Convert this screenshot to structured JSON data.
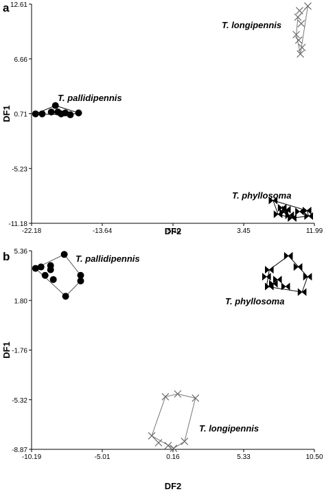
{
  "chart_data": [
    {
      "panel_label": "a",
      "type": "scatter",
      "xlabel": "DF2",
      "ylabel": "DF1",
      "x_ticks": [
        "-22.18",
        "-13.64",
        "-5.10",
        "3.45",
        "11.99"
      ],
      "y_ticks": [
        "12.61",
        "6.66",
        "0.71",
        "-5.23",
        "-11.18"
      ],
      "xlim": [
        -22.18,
        11.99
      ],
      "ylim": [
        -11.18,
        12.61
      ],
      "grid": false,
      "series": [
        {
          "name": "T. pallidipennis",
          "marker": "circle",
          "hull_color": "#000000",
          "points": [
            [
              -21.7,
              0.7
            ],
            [
              -20.9,
              0.7
            ],
            [
              -19.8,
              0.9
            ],
            [
              -19.3,
              1.6
            ],
            [
              -19.0,
              0.9
            ],
            [
              -18.6,
              0.7
            ],
            [
              -18.1,
              0.8
            ],
            [
              -17.5,
              0.6
            ],
            [
              -16.5,
              0.8
            ]
          ],
          "hull": [
            [
              -21.7,
              0.7
            ],
            [
              -19.3,
              1.6
            ],
            [
              -16.5,
              0.8
            ],
            [
              -17.5,
              0.6
            ],
            [
              -21.7,
              0.7
            ]
          ]
        },
        {
          "name": "T. longipennis",
          "marker": "x",
          "hull_color": "#777777",
          "points": [
            [
              11.2,
              12.4
            ],
            [
              10.2,
              11.9
            ],
            [
              10.0,
              11.2
            ],
            [
              10.4,
              10.5
            ],
            [
              9.8,
              9.3
            ],
            [
              10.1,
              8.7
            ],
            [
              10.5,
              7.9
            ],
            [
              10.3,
              7.2
            ]
          ],
          "hull": [
            [
              11.2,
              12.4
            ],
            [
              10.0,
              11.2
            ],
            [
              9.8,
              9.3
            ],
            [
              10.3,
              7.2
            ],
            [
              11.2,
              12.4
            ]
          ]
        },
        {
          "name": "T. phyllosoma",
          "marker": "bowtie",
          "hull_color": "#000000",
          "points": [
            [
              7.0,
              -8.7
            ],
            [
              7.6,
              -10.2
            ],
            [
              8.1,
              -9.5
            ],
            [
              8.6,
              -9.7
            ],
            [
              8.3,
              -10.0
            ],
            [
              9.0,
              -10.3
            ],
            [
              9.3,
              -10.6
            ],
            [
              10.2,
              -9.9
            ],
            [
              11.1,
              -9.8
            ],
            [
              11.3,
              -10.4
            ]
          ],
          "hull": [
            [
              7.0,
              -8.7
            ],
            [
              11.1,
              -9.8
            ],
            [
              11.3,
              -10.4
            ],
            [
              9.3,
              -10.6
            ],
            [
              7.6,
              -10.2
            ],
            [
              7.0,
              -8.7
            ]
          ]
        }
      ]
    },
    {
      "panel_label": "b",
      "type": "scatter",
      "xlabel": "DF2",
      "ylabel": "DF1",
      "x_ticks": [
        "-10.19",
        "-5.01",
        "0.16",
        "5.33",
        "10.50"
      ],
      "y_ticks": [
        "5.36",
        "1.80",
        "-1.76",
        "-5.32",
        "-8.87"
      ],
      "xlim": [
        -10.19,
        10.5
      ],
      "ylim": [
        -8.87,
        5.36
      ],
      "grid": false,
      "series": [
        {
          "name": "T. pallidipennis",
          "marker": "circle",
          "hull_color": "#555555",
          "points": [
            [
              -9.9,
              4.1
            ],
            [
              -9.5,
              4.2
            ],
            [
              -8.8,
              4.3
            ],
            [
              -8.8,
              4.0
            ],
            [
              -9.2,
              3.6
            ],
            [
              -8.6,
              3.3
            ],
            [
              -7.8,
              5.1
            ],
            [
              -6.6,
              3.6
            ],
            [
              -6.6,
              3.2
            ],
            [
              -7.7,
              2.1
            ]
          ],
          "hull": [
            [
              -9.9,
              4.1
            ],
            [
              -7.8,
              5.1
            ],
            [
              -6.6,
              3.6
            ],
            [
              -6.6,
              3.2
            ],
            [
              -7.7,
              2.1
            ],
            [
              -9.9,
              4.1
            ]
          ]
        },
        {
          "name": "T. phyllosoma",
          "marker": "bowtie",
          "hull_color": "#000000",
          "points": [
            [
              7.2,
              4.0
            ],
            [
              8.6,
              5.0
            ],
            [
              9.3,
              4.2
            ],
            [
              10.0,
              3.5
            ],
            [
              9.6,
              2.4
            ],
            [
              8.4,
              2.8
            ],
            [
              7.8,
              3.3
            ],
            [
              7.2,
              2.8
            ],
            [
              7.0,
              3.5
            ],
            [
              7.5,
              3.0
            ]
          ],
          "hull": [
            [
              7.2,
              4.0
            ],
            [
              8.6,
              5.0
            ],
            [
              10.0,
              3.5
            ],
            [
              9.6,
              2.4
            ],
            [
              7.0,
              2.8
            ],
            [
              7.2,
              4.0
            ]
          ]
        },
        {
          "name": "T. longipennis",
          "marker": "x",
          "hull_color": "#777777",
          "points": [
            [
              -0.4,
              -5.1
            ],
            [
              1.8,
              -5.2
            ],
            [
              0.5,
              -4.9
            ],
            [
              -1.4,
              -7.9
            ],
            [
              -0.9,
              -8.4
            ],
            [
              -0.2,
              -8.6
            ],
            [
              0.2,
              -8.8
            ],
            [
              1.0,
              -8.3
            ]
          ],
          "hull": [
            [
              -0.4,
              -5.1
            ],
            [
              0.5,
              -4.9
            ],
            [
              1.8,
              -5.2
            ],
            [
              1.0,
              -8.3
            ],
            [
              0.2,
              -8.8
            ],
            [
              -1.4,
              -7.9
            ],
            [
              -0.4,
              -5.1
            ]
          ]
        }
      ]
    }
  ]
}
